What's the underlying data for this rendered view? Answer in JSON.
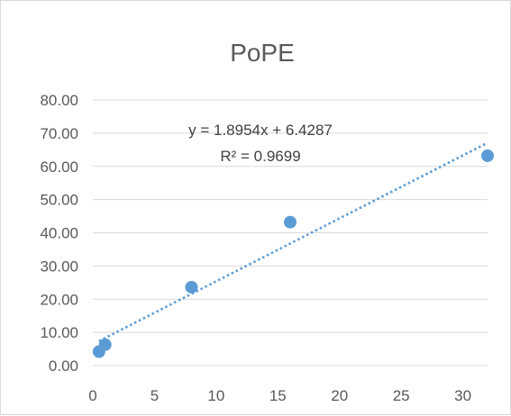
{
  "chart_data": {
    "type": "scatter",
    "title": "PoPE",
    "xlabel": "",
    "ylabel": "",
    "xlim": [
      0,
      32
    ],
    "ylim": [
      0,
      80
    ],
    "x_ticks": [
      "0",
      "5",
      "10",
      "15",
      "20",
      "25",
      "30"
    ],
    "y_ticks": [
      "0.00",
      "10.00",
      "20.00",
      "30.00",
      "40.00",
      "50.00",
      "60.00",
      "70.00",
      "80.00"
    ],
    "grid": true,
    "legend": "none",
    "series": [
      {
        "points": [
          {
            "x": 0.5,
            "y": 4.2
          },
          {
            "x": 1,
            "y": 6.3
          },
          {
            "x": 8,
            "y": 23.6
          },
          {
            "x": 16,
            "y": 43.2
          },
          {
            "x": 32,
            "y": 63.2
          }
        ],
        "color": "#5b9bd5"
      }
    ],
    "trendline": {
      "type": "linear",
      "slope": 1.8954,
      "intercept": 6.4287,
      "x_range": [
        0.5,
        32
      ],
      "style": "dotted",
      "color": "#5b9bd5"
    },
    "annotations": {
      "equation": "y = 1.8954x + 6.4287",
      "r_squared": "R² = 0.9699"
    }
  },
  "colors": {
    "gridline": "#d9d9d9",
    "axis_text": "#595959",
    "marker": "#5b9bd5"
  }
}
